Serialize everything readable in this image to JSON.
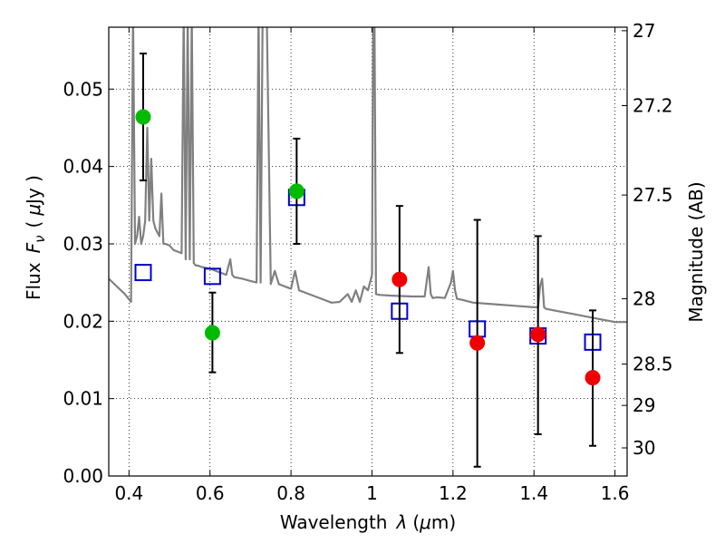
{
  "chart_data": {
    "type": "scatter",
    "xlabel_text": "Wavelength",
    "xlabel_symbol": "λ",
    "xlabel_unit_open": "(",
    "xlabel_unit_mu": "μ",
    "xlabel_unit_rest": "m)",
    "ylabel_text": "Flux",
    "ylabel_symbol": "F",
    "ylabel_subscript": "ν",
    "ylabel_unit_open": "(",
    "ylabel_unit_mu": "μ",
    "ylabel_unit_rest": "Jy )",
    "y2label": "Magnitude (AB)",
    "xlim": [
      0.35,
      1.63
    ],
    "ylim": [
      0.0,
      0.058
    ],
    "x_ticks": [
      0.4,
      0.6,
      0.8,
      1.0,
      1.2,
      1.4,
      1.6
    ],
    "x_tick_labels": [
      "0.4",
      "0.6",
      "0.8",
      "1",
      "1.2",
      "1.4",
      "1.6"
    ],
    "y_ticks": [
      0.0,
      0.01,
      0.02,
      0.03,
      0.04,
      0.05
    ],
    "y_tick_labels": [
      "0.00",
      "0.01",
      "0.02",
      "0.03",
      "0.04",
      "0.05"
    ],
    "y2_ticks": [
      27,
      27.2,
      27.5,
      28,
      28.5,
      29,
      30
    ],
    "y2_tick_labels": [
      "27",
      "27.2",
      "27.5",
      "28",
      "28.5",
      "29",
      "30"
    ],
    "grid": true,
    "series": [
      {
        "name": "model-spectrum",
        "kind": "line",
        "color": "#808080",
        "x": [
          0.35,
          0.37,
          0.39,
          0.405,
          0.41,
          0.415,
          0.42,
          0.425,
          0.43,
          0.435,
          0.44,
          0.445,
          0.45,
          0.455,
          0.46,
          0.465,
          0.47,
          0.475,
          0.48,
          0.485,
          0.49,
          0.5,
          0.51,
          0.52,
          0.53,
          0.535,
          0.54,
          0.545,
          0.55,
          0.555,
          0.56,
          0.565,
          0.57,
          0.58,
          0.6,
          0.62,
          0.64,
          0.65,
          0.655,
          0.66,
          0.68,
          0.7,
          0.715,
          0.72,
          0.725,
          0.73,
          0.74,
          0.75,
          0.76,
          0.77,
          0.78,
          0.79,
          0.8,
          0.81,
          0.82,
          0.84,
          0.86,
          0.88,
          0.9,
          0.92,
          0.93,
          0.94,
          0.95,
          0.96,
          0.97,
          0.98,
          0.99,
          1.0,
          1.003,
          1.006,
          1.01,
          1.02,
          1.05,
          1.1,
          1.13,
          1.14,
          1.145,
          1.15,
          1.16,
          1.18,
          1.195,
          1.2,
          1.205,
          1.21,
          1.22,
          1.25,
          1.3,
          1.35,
          1.4,
          1.41,
          1.415,
          1.42,
          1.425,
          1.43,
          1.45,
          1.5,
          1.55,
          1.6,
          1.63
        ],
        "y": [
          0.0255,
          0.0245,
          0.0235,
          0.0225,
          0.06,
          0.03,
          0.031,
          0.0335,
          0.03,
          0.031,
          0.033,
          0.045,
          0.033,
          0.041,
          0.033,
          0.032,
          0.0315,
          0.031,
          0.0365,
          0.03,
          0.03,
          0.0298,
          0.0292,
          0.029,
          0.0288,
          0.06,
          0.028,
          0.06,
          0.028,
          0.06,
          0.0275,
          0.0272,
          0.0272,
          0.027,
          0.0268,
          0.0264,
          0.026,
          0.028,
          0.026,
          0.0257,
          0.0255,
          0.0252,
          0.025,
          0.06,
          0.025,
          0.06,
          0.06,
          0.0248,
          0.0265,
          0.0248,
          0.0246,
          0.0244,
          0.0242,
          0.0265,
          0.024,
          0.0236,
          0.0232,
          0.0228,
          0.0224,
          0.0225,
          0.023,
          0.0235,
          0.0225,
          0.024,
          0.0225,
          0.0245,
          0.024,
          0.026,
          0.06,
          0.06,
          0.0235,
          0.0234,
          0.0233,
          0.0232,
          0.0232,
          0.027,
          0.0235,
          0.023,
          0.0231,
          0.023,
          0.025,
          0.0265,
          0.024,
          0.0229,
          0.0228,
          0.0224,
          0.0222,
          0.022,
          0.0218,
          0.0218,
          0.0245,
          0.0255,
          0.0218,
          0.0216,
          0.0214,
          0.0209,
          0.0204,
          0.0199,
          0.0199
        ]
      },
      {
        "name": "model-photometry",
        "kind": "marker",
        "marker": "open-square",
        "color": "#0000cc",
        "x": [
          0.435,
          0.606,
          0.814,
          1.068,
          1.26,
          1.41,
          1.545
        ],
        "y": [
          0.0263,
          0.0258,
          0.036,
          0.0213,
          0.019,
          0.0181,
          0.0173
        ]
      },
      {
        "name": "green-detections",
        "kind": "marker",
        "marker": "filled-circle",
        "color": "#00bb00",
        "x": [
          0.435,
          0.606,
          0.814
        ],
        "y": [
          0.0464,
          0.0185,
          0.0368
        ],
        "yerr_low": [
          0.0382,
          0.0134,
          0.03
        ],
        "yerr_high": [
          0.0546,
          0.0237,
          0.0436
        ]
      },
      {
        "name": "red-detections",
        "kind": "marker",
        "marker": "filled-circle",
        "color": "#ee0000",
        "x": [
          1.068,
          1.26,
          1.41,
          1.545
        ],
        "y": [
          0.0254,
          0.0172,
          0.0183,
          0.0127
        ],
        "yerr_low": [
          0.0159,
          0.0012,
          0.0054,
          0.0039
        ],
        "yerr_high": [
          0.0349,
          0.0331,
          0.031,
          0.0214
        ]
      }
    ]
  }
}
